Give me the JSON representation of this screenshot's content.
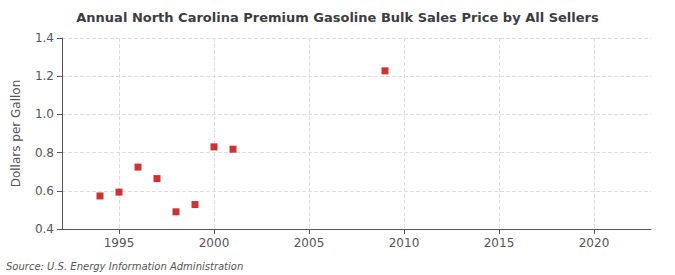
{
  "chart_data": {
    "type": "scatter",
    "title": "Annual North Carolina Premium Gasoline Bulk Sales Price by All Sellers",
    "ylabel": "Dollars per Gallon",
    "source": "Source: U.S. Energy Information Administration",
    "x": [
      1994,
      1995,
      1996,
      1997,
      1998,
      1999,
      2000,
      2001,
      2009
    ],
    "values": [
      0.573,
      0.593,
      0.724,
      0.664,
      0.49,
      0.528,
      0.83,
      0.818,
      1.228
    ],
    "color": "#c00000",
    "marker": "square",
    "xlim": [
      1992,
      2023
    ],
    "xticks": [
      1995,
      2000,
      2005,
      2010,
      2015,
      2020
    ],
    "ylim": [
      0.4,
      1.4
    ],
    "yticks": [
      0.4,
      0.6,
      0.8,
      {
        "value": 1.0,
        "label": "1.0"
      },
      1.2,
      1.4
    ],
    "grid": true
  }
}
